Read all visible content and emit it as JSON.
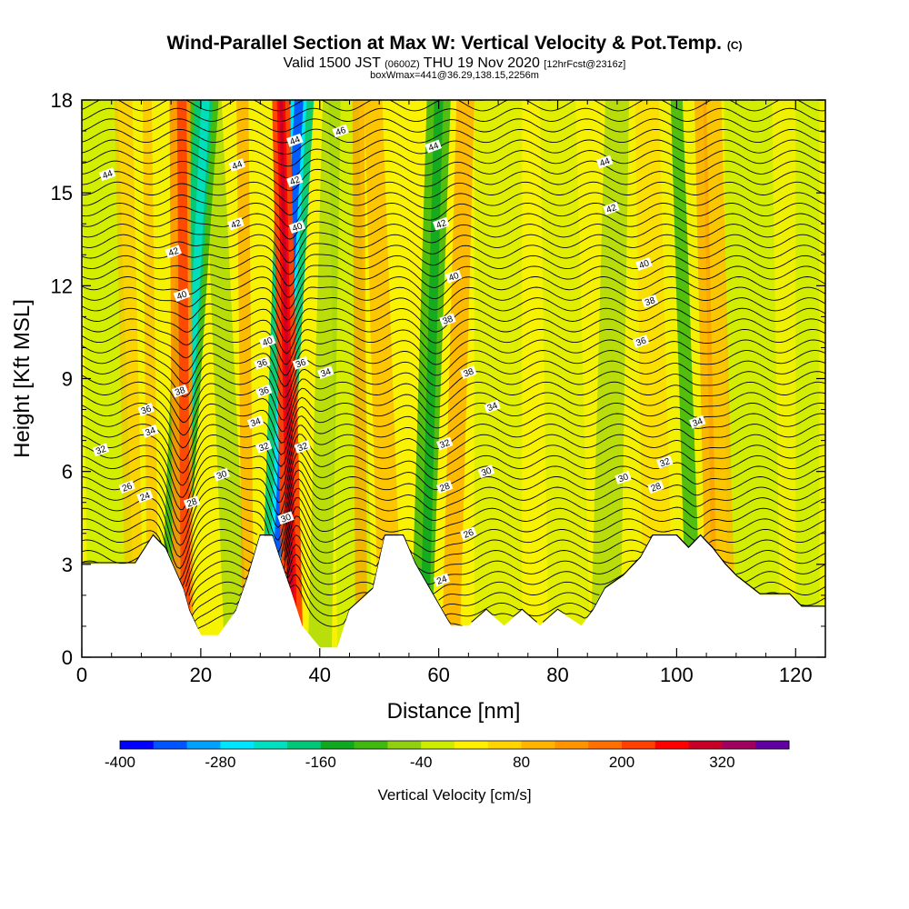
{
  "header": {
    "title": "Wind-Parallel Section at Max W: Vertical Velocity & Pot.Temp.",
    "copyright": "(C)",
    "valid_prefix": "Valid 1500 JST",
    "valid_utc": "(0600Z)",
    "valid_date": "THU 19 Nov 2020",
    "forecast": "[12hrFcst@2316z]",
    "box_info": "boxWmax=441@36.29,138.15,2256m"
  },
  "chart_data": {
    "type": "heatmap",
    "xlabel": "Distance [nm]",
    "ylabel": "Height [Kft MSL]",
    "xlim": [
      0,
      125
    ],
    "ylim": [
      0,
      18
    ],
    "xticks": [
      "0",
      "20",
      "40",
      "60",
      "80",
      "100",
      "120"
    ],
    "yticks": [
      "0",
      "3",
      "6",
      "9",
      "12",
      "15",
      "18"
    ],
    "colorbar": {
      "label": "Vertical Velocity [cm/s]",
      "range": [
        -400,
        400
      ],
      "step": 40,
      "tick_values": [
        -400,
        -280,
        -160,
        -40,
        80,
        200,
        320
      ],
      "tick_labels": [
        "-400",
        "-280",
        "-160",
        "-40",
        "80",
        "200",
        "320"
      ],
      "colors": [
        "#0000ff",
        "#0055ff",
        "#00a0ff",
        "#00e5ff",
        "#00e0c0",
        "#00c878",
        "#10a820",
        "#40b810",
        "#90d010",
        "#ccec00",
        "#fff000",
        "#ffd400",
        "#ffb400",
        "#ff9400",
        "#ff7000",
        "#ff4000",
        "#ff0000",
        "#c80028",
        "#a00060",
        "#6000a0"
      ]
    },
    "vertical_velocity_cores": [
      {
        "distance": 15,
        "sign": "down",
        "value": -200
      },
      {
        "distance": 18,
        "sign": "up",
        "value": 300
      },
      {
        "distance": 32,
        "sign": "down",
        "value": -400
      },
      {
        "distance": 35,
        "sign": "up",
        "value": 441
      },
      {
        "distance": 58,
        "sign": "down",
        "value": -180
      },
      {
        "distance": 104,
        "sign": "down",
        "value": -120
      }
    ],
    "terrain": [
      [
        0,
        3.0
      ],
      [
        9,
        3.0
      ],
      [
        10,
        3.3
      ],
      [
        12,
        3.9
      ],
      [
        14,
        3.5
      ],
      [
        17,
        2.2
      ],
      [
        18,
        1.5
      ],
      [
        20,
        0.7
      ],
      [
        23,
        0.7
      ],
      [
        26,
        1.5
      ],
      [
        28,
        2.6
      ],
      [
        30,
        3.9
      ],
      [
        32,
        3.9
      ],
      [
        33,
        3.3
      ],
      [
        35,
        2.2
      ],
      [
        37,
        1.0
      ],
      [
        40,
        0.3
      ],
      [
        43,
        0.3
      ],
      [
        45,
        1.5
      ],
      [
        49,
        2.2
      ],
      [
        51,
        3.9
      ],
      [
        54,
        3.9
      ],
      [
        56,
        3.0
      ],
      [
        59,
        2.0
      ],
      [
        62,
        1.0
      ],
      [
        65,
        1.0
      ],
      [
        68,
        1.5
      ],
      [
        71,
        1.0
      ],
      [
        74,
        1.5
      ],
      [
        77,
        1.0
      ],
      [
        80,
        1.5
      ],
      [
        84,
        1.0
      ],
      [
        86,
        1.5
      ],
      [
        88,
        2.2
      ],
      [
        91,
        2.6
      ],
      [
        94,
        3.2
      ],
      [
        96,
        3.9
      ],
      [
        100,
        3.9
      ],
      [
        102,
        3.5
      ],
      [
        104,
        3.9
      ],
      [
        106,
        3.5
      ],
      [
        108,
        3.0
      ],
      [
        110,
        2.6
      ],
      [
        114,
        2.0
      ],
      [
        119,
        2.0
      ],
      [
        121,
        1.6
      ],
      [
        125,
        1.6
      ]
    ],
    "theta_contours": [
      {
        "level": "24",
        "label_at": [
          [
            10.6,
            5.2
          ],
          [
            60.5,
            2.5
          ]
        ]
      },
      {
        "level": "26",
        "label_at": [
          [
            7.6,
            5.5
          ],
          [
            65,
            4.0
          ]
        ]
      },
      {
        "level": "28",
        "label_at": [
          [
            18.5,
            5.0
          ],
          [
            61,
            5.5
          ],
          [
            96.5,
            5.5
          ]
        ]
      },
      {
        "level": "30",
        "label_at": [
          [
            23.5,
            5.9
          ],
          [
            34.3,
            4.5
          ],
          [
            68,
            6.0
          ],
          [
            91,
            5.8
          ]
        ]
      },
      {
        "level": "32",
        "label_at": [
          [
            3.2,
            6.7
          ],
          [
            30.6,
            6.8
          ],
          [
            37.1,
            6.8
          ],
          [
            61,
            6.9
          ],
          [
            98,
            6.3
          ]
        ]
      },
      {
        "level": "34",
        "label_at": [
          [
            11.5,
            7.3
          ],
          [
            29.2,
            7.6
          ],
          [
            41,
            9.2
          ],
          [
            69,
            8.1
          ],
          [
            103.5,
            7.6
          ]
        ]
      },
      {
        "level": "36",
        "label_at": [
          [
            10.8,
            8.0
          ],
          [
            30.6,
            8.6
          ],
          [
            36.8,
            9.5
          ],
          [
            30.3,
            9.5
          ],
          [
            94,
            10.2
          ]
        ]
      },
      {
        "level": "38",
        "label_at": [
          [
            16.5,
            8.6
          ],
          [
            61.5,
            10.9
          ],
          [
            65,
            9.2
          ],
          [
            95.5,
            11.5
          ]
        ]
      },
      {
        "level": "40",
        "label_at": [
          [
            16.8,
            11.7
          ],
          [
            31.2,
            10.2
          ],
          [
            36.2,
            13.9
          ],
          [
            62.5,
            12.3
          ],
          [
            94.5,
            12.7
          ]
        ]
      },
      {
        "level": "42",
        "label_at": [
          [
            15.4,
            13.1
          ],
          [
            25.9,
            14.0
          ],
          [
            35.8,
            15.4
          ],
          [
            60.4,
            14.0
          ],
          [
            89,
            14.5
          ]
        ]
      },
      {
        "level": "44",
        "label_at": [
          [
            4.3,
            15.6
          ],
          [
            26.1,
            15.9
          ],
          [
            35.8,
            16.7
          ],
          [
            59.1,
            16.5
          ],
          [
            87.9,
            16.0
          ]
        ]
      },
      {
        "level": "46",
        "label_at": [
          [
            43.5,
            17.0
          ]
        ]
      }
    ]
  }
}
